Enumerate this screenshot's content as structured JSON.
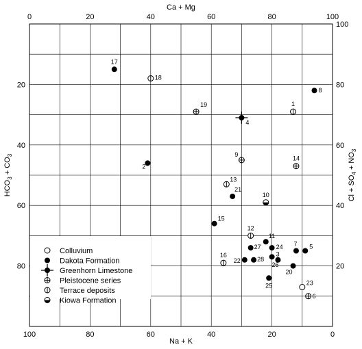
{
  "chart_data": {
    "type": "scatter",
    "top_axis": {
      "label": "Ca + Mg",
      "ticks": [
        "0",
        "20",
        "40",
        "60",
        "80",
        "100"
      ],
      "range": [
        0,
        100
      ]
    },
    "bottom_axis": {
      "label": "Na + K",
      "ticks": [
        "100",
        "80",
        "60",
        "40",
        "20",
        "0"
      ],
      "range": [
        100,
        0
      ]
    },
    "left_axis": {
      "label": "HCO3 + CO3",
      "ticks": [
        "20",
        "40",
        "60",
        "80"
      ],
      "range": [
        0,
        100
      ],
      "direction": "down"
    },
    "right_axis": {
      "label": "Cl + SO4 + NO3",
      "ticks": [
        "100",
        "80",
        "60",
        "40",
        "20"
      ],
      "range": [
        100,
        0
      ],
      "direction": "down"
    },
    "grid": "coarse",
    "legend_position": "lower-left",
    "legend": [
      {
        "marker": "colluvium",
        "label": "Colluvium"
      },
      {
        "marker": "dakota",
        "label": "Dakota Formation"
      },
      {
        "marker": "greenhorn",
        "label": "Greenhorn Limestone"
      },
      {
        "marker": "pleistocene",
        "label": "Pleistocene series"
      },
      {
        "marker": "terrace",
        "label": "Terrace deposits"
      },
      {
        "marker": "kiowa",
        "label": "Kiowa Formation"
      }
    ],
    "points": [
      {
        "id": "1",
        "x": 87,
        "y": 29,
        "marker": "terrace"
      },
      {
        "id": "2",
        "x": 39,
        "y": 46,
        "marker": "dakota"
      },
      {
        "id": "3",
        "x": 80,
        "y": 77,
        "marker": "dakota"
      },
      {
        "id": "4",
        "x": 70,
        "y": 31,
        "marker": "greenhorn"
      },
      {
        "id": "5",
        "x": 91,
        "y": 75,
        "marker": "dakota"
      },
      {
        "id": "6",
        "x": 92,
        "y": 90,
        "marker": "pleistocene"
      },
      {
        "id": "7",
        "x": 88,
        "y": 75,
        "marker": "dakota"
      },
      {
        "id": "8",
        "x": 94,
        "y": 22,
        "marker": "dakota"
      },
      {
        "id": "9",
        "x": 70,
        "y": 45,
        "marker": "pleistocene"
      },
      {
        "id": "10",
        "x": 78,
        "y": 59,
        "marker": "kiowa"
      },
      {
        "id": "11",
        "x": 78,
        "y": 72,
        "marker": "dakota"
      },
      {
        "id": "12",
        "x": 73,
        "y": 70,
        "marker": "terrace"
      },
      {
        "id": "13",
        "x": 65,
        "y": 53,
        "marker": "terrace"
      },
      {
        "id": "14",
        "x": 88,
        "y": 47,
        "marker": "pleistocene"
      },
      {
        "id": "15",
        "x": 61,
        "y": 66,
        "marker": "dakota"
      },
      {
        "id": "16",
        "x": 64,
        "y": 79,
        "marker": "terrace"
      },
      {
        "id": "17",
        "x": 28,
        "y": 15,
        "marker": "dakota"
      },
      {
        "id": "18",
        "x": 40,
        "y": 18,
        "marker": "terrace"
      },
      {
        "id": "19",
        "x": 55,
        "y": 29,
        "marker": "pleistocene"
      },
      {
        "id": "20",
        "x": 87,
        "y": 80,
        "marker": "dakota"
      },
      {
        "id": "21",
        "x": 67,
        "y": 57,
        "marker": "dakota"
      },
      {
        "id": "22",
        "x": 71,
        "y": 78,
        "marker": "dakota"
      },
      {
        "id": "23",
        "x": 90,
        "y": 87,
        "marker": "colluvium"
      },
      {
        "id": "24",
        "x": 80,
        "y": 74,
        "marker": "dakota"
      },
      {
        "id": "25",
        "x": 79,
        "y": 84,
        "marker": "dakota"
      },
      {
        "id": "26",
        "x": 82,
        "y": 78,
        "marker": "dakota"
      },
      {
        "id": "27",
        "x": 73,
        "y": 74,
        "marker": "dakota"
      },
      {
        "id": "28",
        "x": 74,
        "y": 78,
        "marker": "dakota"
      }
    ]
  }
}
